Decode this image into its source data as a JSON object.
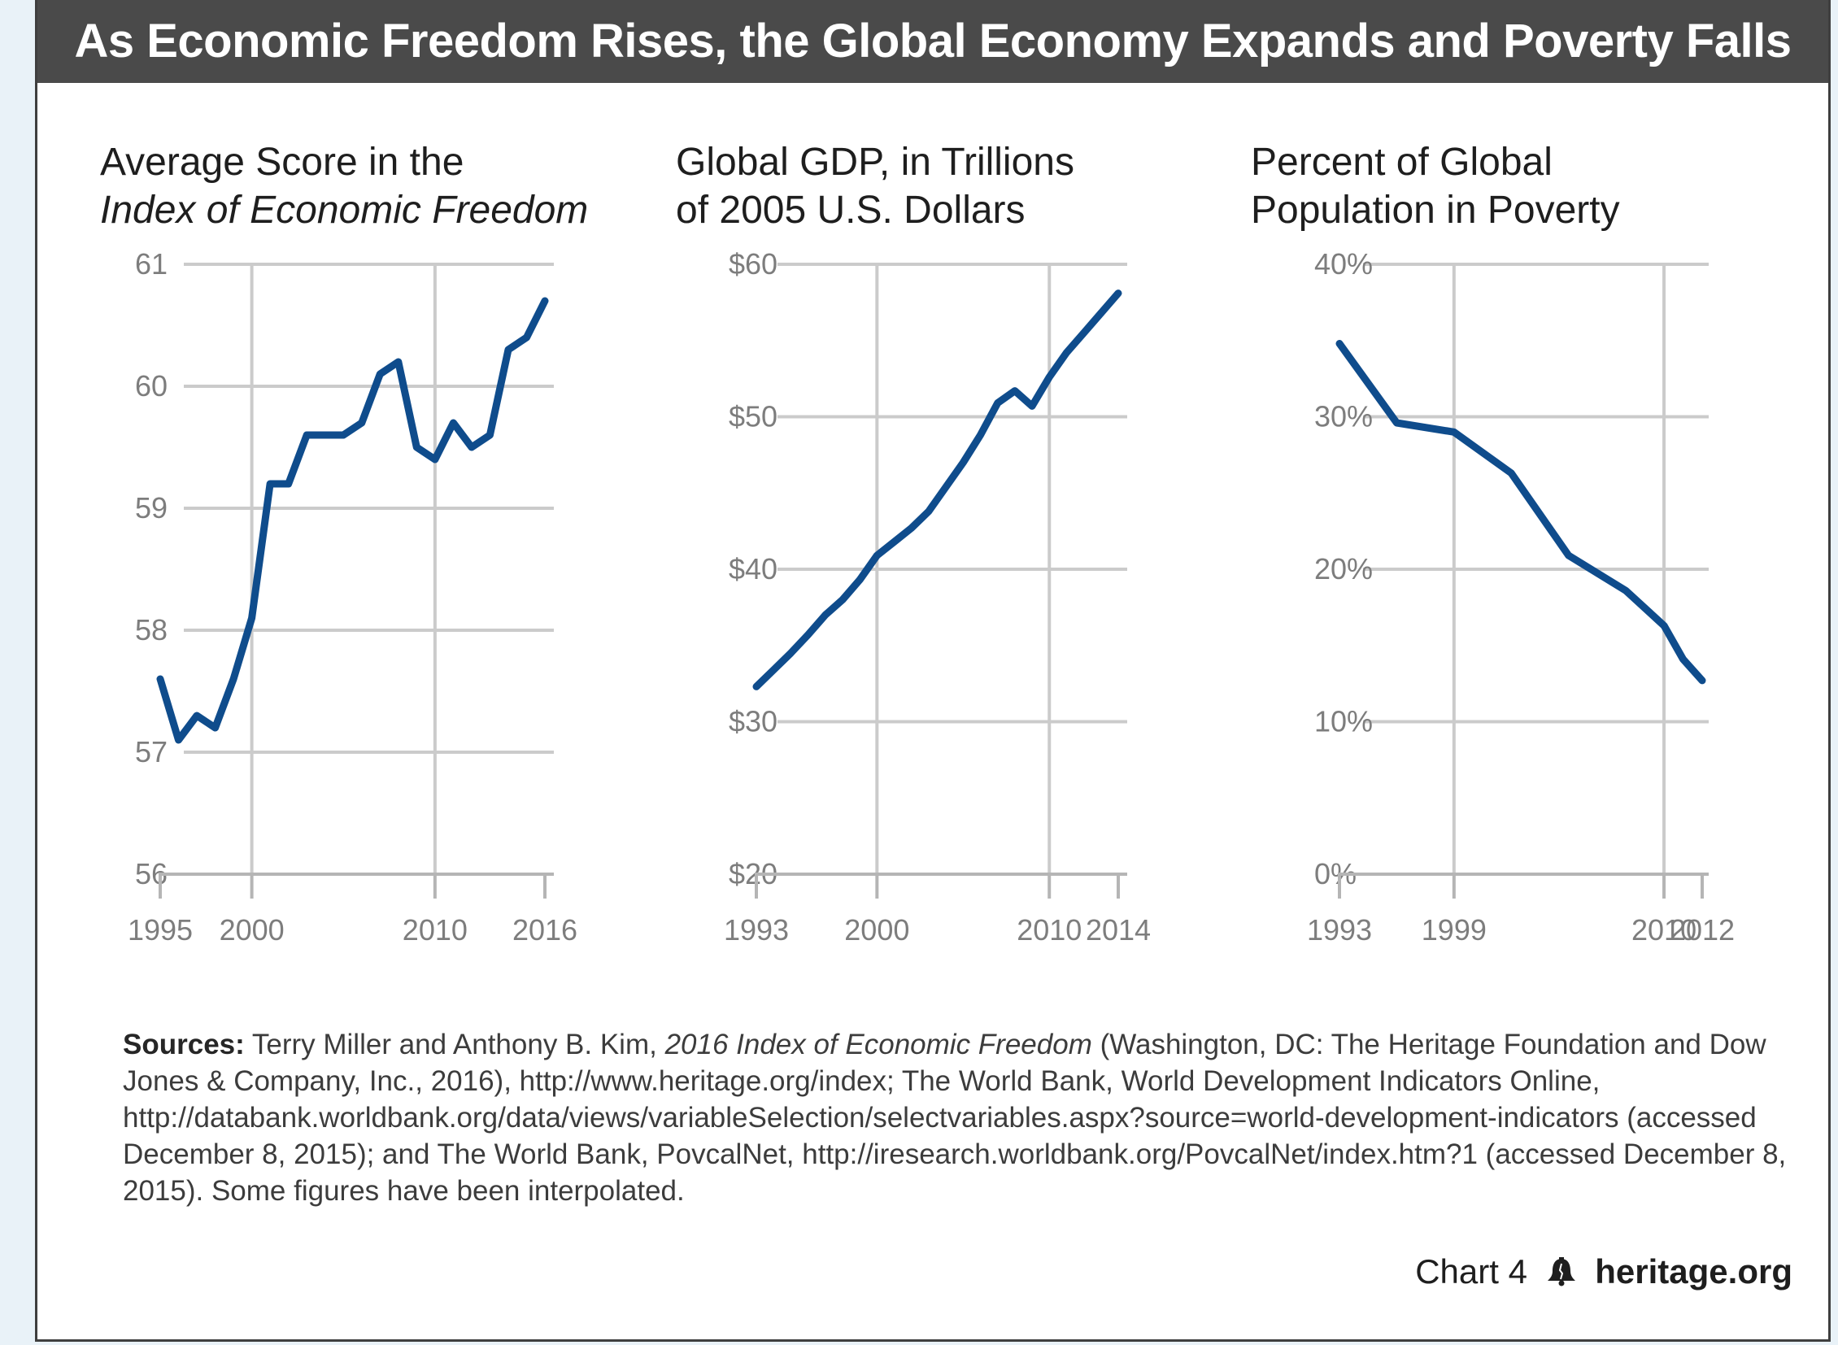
{
  "banner_title": "As Economic Freedom Rises, the Global Economy Expands and Poverty Falls",
  "chart_data": [
    {
      "type": "line",
      "title_line1": "Average Score in the",
      "title_line2": "Index of Economic Freedom",
      "x": [
        1995,
        1996,
        1997,
        1998,
        1999,
        2000,
        2001,
        2002,
        2003,
        2004,
        2005,
        2006,
        2007,
        2008,
        2009,
        2010,
        2011,
        2012,
        2013,
        2014,
        2015,
        2016
      ],
      "values": [
        57.6,
        57.1,
        57.3,
        57.2,
        57.6,
        58.1,
        59.2,
        59.2,
        59.6,
        59.6,
        59.6,
        59.7,
        60.1,
        60.2,
        59.5,
        59.4,
        59.7,
        59.5,
        59.6,
        60.3,
        60.4,
        60.7
      ],
      "xlim": [
        1995,
        2016
      ],
      "ylim": [
        56,
        61
      ],
      "x_ticks": [
        1995,
        2000,
        2010,
        2016
      ],
      "y_ticks": [
        56,
        57,
        58,
        59,
        60,
        61
      ],
      "x_tick_labels": [
        "1995",
        "2000",
        "2010",
        "2016"
      ],
      "y_tick_labels": [
        "56",
        "57",
        "58",
        "59",
        "60",
        "61"
      ],
      "color": "#0f4c8c",
      "grid": true
    },
    {
      "type": "line",
      "title_line1": "Global GDP, in Trillions",
      "title_line2": "of 2005 U.S. Dollars",
      "x": [
        1993,
        1994,
        1995,
        1996,
        1997,
        1998,
        1999,
        2000,
        2001,
        2002,
        2003,
        2004,
        2005,
        2006,
        2007,
        2008,
        2009,
        2010,
        2011,
        2012,
        2013,
        2014
      ],
      "values": [
        32.3,
        33.4,
        34.5,
        35.7,
        37,
        38,
        39.3,
        40.9,
        41.8,
        42.7,
        43.8,
        45.4,
        47,
        48.8,
        50.9,
        51.7,
        50.7,
        52.6,
        54.2,
        55.5,
        56.8,
        58.1
      ],
      "xlim": [
        1993,
        2014
      ],
      "ylim": [
        20,
        60
      ],
      "x_ticks": [
        1993,
        2000,
        2010,
        2014
      ],
      "y_ticks": [
        20,
        30,
        40,
        50,
        60
      ],
      "x_tick_labels": [
        "1993",
        "2000",
        "2010",
        "2014"
      ],
      "y_tick_labels": [
        "$20",
        "$30",
        "$40",
        "$50",
        "$60"
      ],
      "color": "#0f4c8c",
      "grid": true
    },
    {
      "type": "line",
      "title_line1": "Percent of Global",
      "title_line2": "Population in Poverty",
      "x": [
        1993,
        1996,
        1999,
        2002,
        2005,
        2008,
        2010,
        2011,
        2012
      ],
      "values": [
        34.8,
        29.6,
        29,
        26.3,
        20.9,
        18.6,
        16.3,
        14.1,
        12.7
      ],
      "xlim": [
        1993,
        2012
      ],
      "ylim": [
        0,
        40
      ],
      "x_ticks": [
        1993,
        1999,
        2010,
        2012
      ],
      "y_ticks": [
        0,
        10,
        20,
        30,
        40
      ],
      "x_tick_labels": [
        "1993",
        "1999",
        "2010",
        "2012"
      ],
      "y_tick_labels": [
        "0%",
        "10%",
        "20%",
        "30%",
        "40%"
      ],
      "color": "#0f4c8c",
      "grid": true
    }
  ],
  "sources": {
    "label": "Sources:",
    "part1": " Terry Miller and Anthony B. Kim, ",
    "italic": "2016 Index of Economic Freedom",
    "part2": " (Washington, DC: The Heritage Foundation and Dow Jones & Company, Inc., 2016), http://www.heritage.org/index; The World Bank, World Development Indicators Online, http://databank.worldbank.org/data/views/variableSelection/selectvariables.aspx?source=world-development-indicators (accessed December 8, 2015); and The World Bank, PovcalNet, http://iresearch.worldbank.org/PovcalNet/index.htm?1 (accessed December 8, 2015). Some figures have been interpolated."
  },
  "footer": {
    "chart_label": "Chart 4",
    "icon": "liberty-bell-icon",
    "site": "heritage.org"
  }
}
